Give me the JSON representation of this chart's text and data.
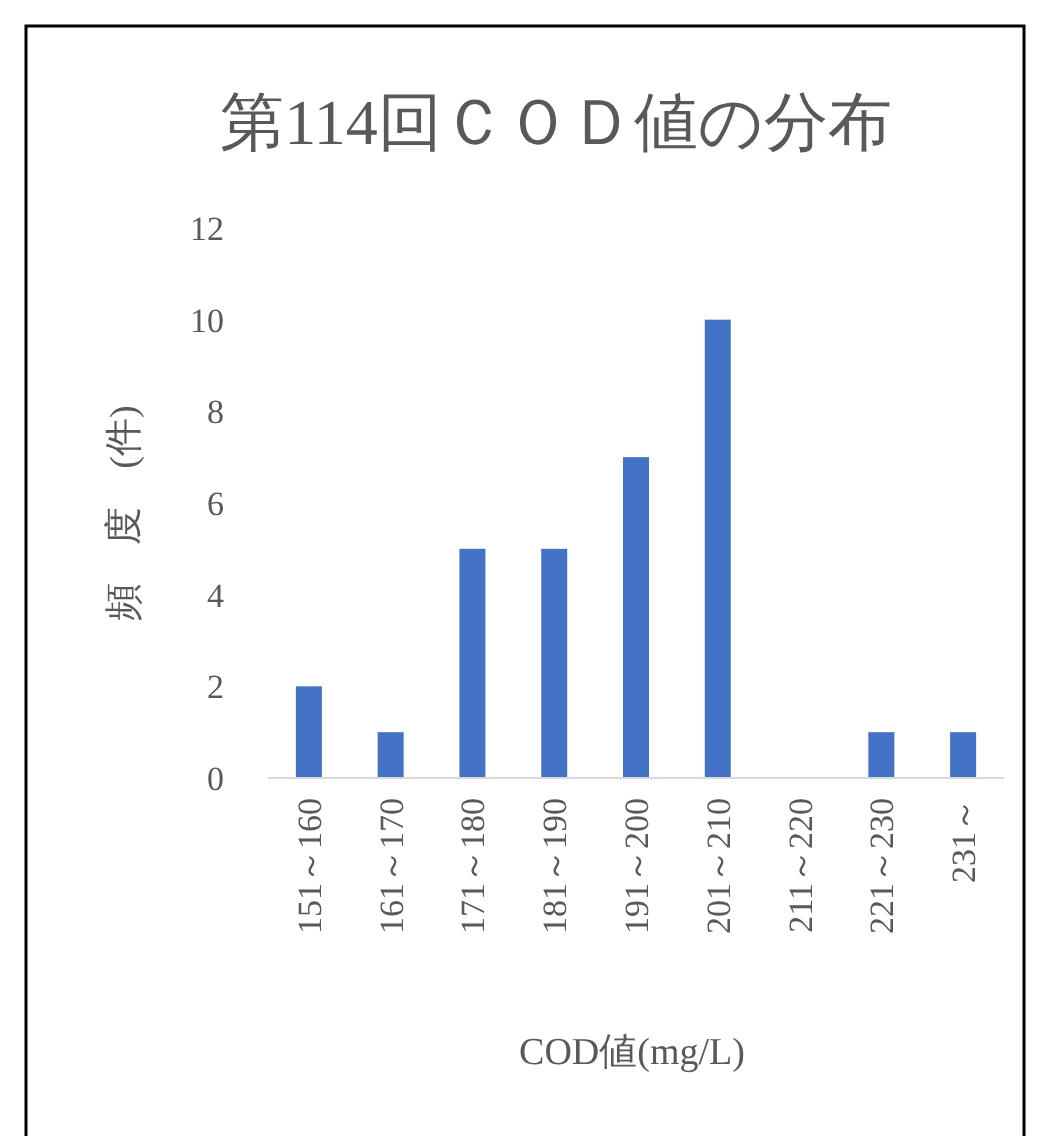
{
  "chart_data": {
    "type": "bar",
    "title": "第114回ＣＯＤ値の分布",
    "xlabel": "COD値(mg/L)",
    "ylabel": "頻　度　(件)",
    "categories": [
      "151～160",
      "161～170",
      "171～180",
      "181～190",
      "191～200",
      "201～210",
      "211～220",
      "221～230",
      "231～"
    ],
    "values": [
      2,
      1,
      5,
      5,
      7,
      10,
      0,
      1,
      1
    ],
    "color": "#4472c4",
    "ylim": [
      0,
      12
    ],
    "yticks": [
      0,
      2,
      4,
      6,
      8,
      10,
      12
    ]
  }
}
